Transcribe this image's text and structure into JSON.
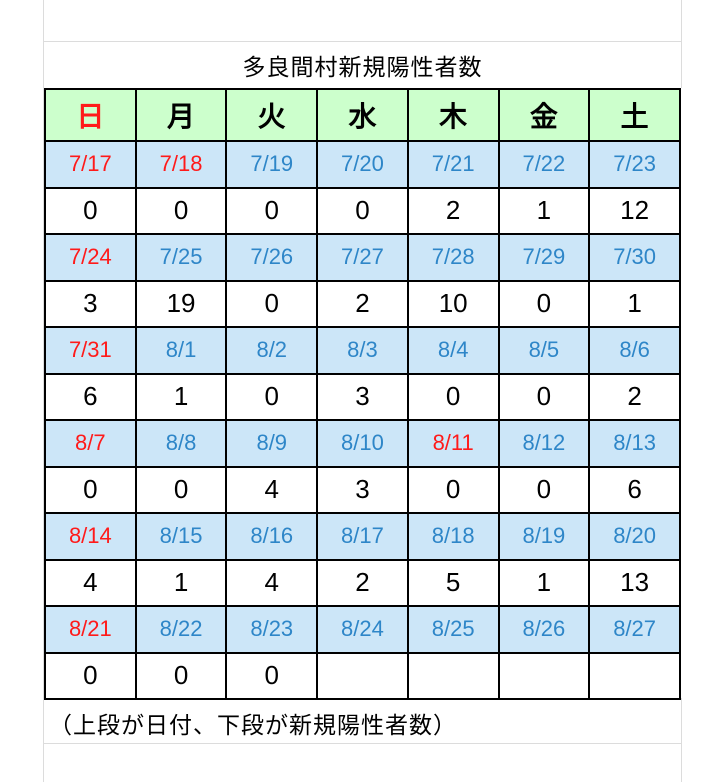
{
  "title": "多良間村新規陽性者数",
  "footnote": "（上段が日付、下段が新規陽性者数）",
  "colors": {
    "header_bg": "#ccffcc",
    "date_row_bg": "#cce6f8",
    "date_text": "#2e86c8",
    "holiday_text": "#ff1a1a",
    "count_text": "#000000",
    "table_border": "#000000",
    "gridline": "#dcdcdc"
  },
  "weekday_header": [
    {
      "label": "日",
      "holiday": true
    },
    {
      "label": "月",
      "holiday": false
    },
    {
      "label": "火",
      "holiday": false
    },
    {
      "label": "水",
      "holiday": false
    },
    {
      "label": "木",
      "holiday": false
    },
    {
      "label": "金",
      "holiday": false
    },
    {
      "label": "土",
      "holiday": false
    }
  ],
  "weeks": [
    {
      "dates": [
        {
          "label": "7/17",
          "holiday": true
        },
        {
          "label": "7/18",
          "holiday": true
        },
        {
          "label": "7/19",
          "holiday": false
        },
        {
          "label": "7/20",
          "holiday": false
        },
        {
          "label": "7/21",
          "holiday": false
        },
        {
          "label": "7/22",
          "holiday": false
        },
        {
          "label": "7/23",
          "holiday": false
        }
      ],
      "counts": [
        "0",
        "0",
        "0",
        "0",
        "2",
        "1",
        "12"
      ]
    },
    {
      "dates": [
        {
          "label": "7/24",
          "holiday": true
        },
        {
          "label": "7/25",
          "holiday": false
        },
        {
          "label": "7/26",
          "holiday": false
        },
        {
          "label": "7/27",
          "holiday": false
        },
        {
          "label": "7/28",
          "holiday": false
        },
        {
          "label": "7/29",
          "holiday": false
        },
        {
          "label": "7/30",
          "holiday": false
        }
      ],
      "counts": [
        "3",
        "19",
        "0",
        "2",
        "10",
        "0",
        "1"
      ]
    },
    {
      "dates": [
        {
          "label": "7/31",
          "holiday": true
        },
        {
          "label": "8/1",
          "holiday": false
        },
        {
          "label": "8/2",
          "holiday": false
        },
        {
          "label": "8/3",
          "holiday": false
        },
        {
          "label": "8/4",
          "holiday": false
        },
        {
          "label": "8/5",
          "holiday": false
        },
        {
          "label": "8/6",
          "holiday": false
        }
      ],
      "counts": [
        "6",
        "1",
        "0",
        "3",
        "0",
        "0",
        "2"
      ]
    },
    {
      "dates": [
        {
          "label": "8/7",
          "holiday": true
        },
        {
          "label": "8/8",
          "holiday": false
        },
        {
          "label": "8/9",
          "holiday": false
        },
        {
          "label": "8/10",
          "holiday": false
        },
        {
          "label": "8/11",
          "holiday": true
        },
        {
          "label": "8/12",
          "holiday": false
        },
        {
          "label": "8/13",
          "holiday": false
        }
      ],
      "counts": [
        "0",
        "0",
        "4",
        "3",
        "0",
        "0",
        "6"
      ]
    },
    {
      "dates": [
        {
          "label": "8/14",
          "holiday": true
        },
        {
          "label": "8/15",
          "holiday": false
        },
        {
          "label": "8/16",
          "holiday": false
        },
        {
          "label": "8/17",
          "holiday": false
        },
        {
          "label": "8/18",
          "holiday": false
        },
        {
          "label": "8/19",
          "holiday": false
        },
        {
          "label": "8/20",
          "holiday": false
        }
      ],
      "counts": [
        "4",
        "1",
        "4",
        "2",
        "5",
        "1",
        "13"
      ]
    },
    {
      "dates": [
        {
          "label": "8/21",
          "holiday": true
        },
        {
          "label": "8/22",
          "holiday": false
        },
        {
          "label": "8/23",
          "holiday": false
        },
        {
          "label": "8/24",
          "holiday": false
        },
        {
          "label": "8/25",
          "holiday": false
        },
        {
          "label": "8/26",
          "holiday": false
        },
        {
          "label": "8/27",
          "holiday": false
        }
      ],
      "counts": [
        "0",
        "0",
        "0",
        "",
        "",
        "",
        ""
      ]
    }
  ]
}
